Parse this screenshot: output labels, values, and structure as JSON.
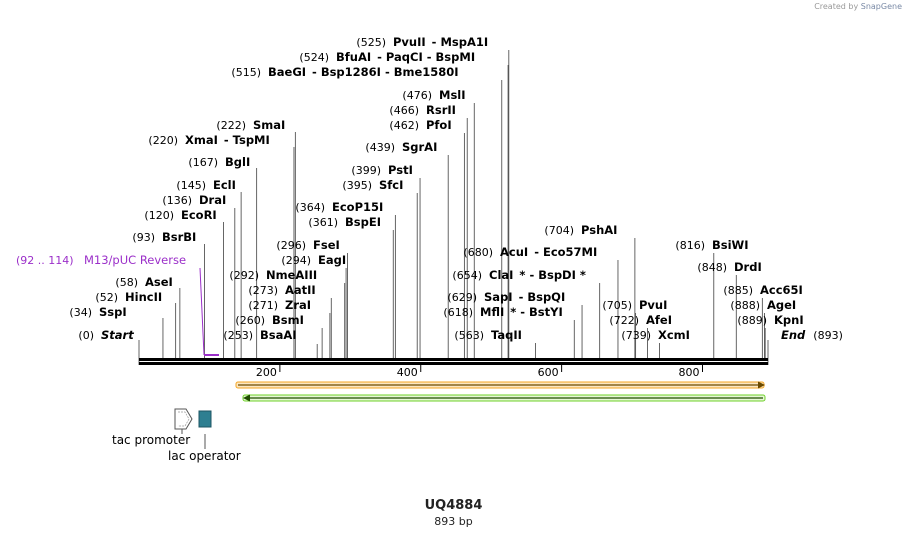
{
  "credit": {
    "prefix": "Created by",
    "brand": "SnapGene"
  },
  "sequence": {
    "name": "UQ4884",
    "length_label": "893 bp",
    "length": 893
  },
  "ruler": {
    "ticks": [
      200,
      400,
      600,
      800
    ]
  },
  "sites": [
    {
      "id": "start",
      "pos": "(0)",
      "name": "Start",
      "bp": 0,
      "italic": true
    },
    {
      "id": "sspi",
      "pos": "(34)",
      "name": "SspI",
      "bp": 34
    },
    {
      "id": "hincii",
      "pos": "(52)",
      "name": "HincII",
      "bp": 52
    },
    {
      "id": "asei",
      "pos": "(58)",
      "name": "AseI",
      "bp": 58
    },
    {
      "id": "bsrbi",
      "pos": "(93)",
      "name": "BsrBI",
      "bp": 93
    },
    {
      "id": "ecori",
      "pos": "(120)",
      "name": "EcoRI",
      "bp": 120
    },
    {
      "id": "drai",
      "pos": "(136)",
      "name": "DraI",
      "bp": 136
    },
    {
      "id": "ecli",
      "pos": "(145)",
      "name": "EclI",
      "bp": 145
    },
    {
      "id": "bgli",
      "pos": "(167)",
      "name": "BglI",
      "bp": 167
    },
    {
      "id": "xmai",
      "pos": "(220)",
      "name": "XmaI",
      "extra": "- TspMI",
      "bp": 220
    },
    {
      "id": "smai",
      "pos": "(222)",
      "name": "SmaI",
      "bp": 222
    },
    {
      "id": "bsaai",
      "pos": "(253)",
      "name": "BsaAI",
      "bp": 253
    },
    {
      "id": "bsmi",
      "pos": "(260)",
      "name": "BsmI",
      "bp": 260
    },
    {
      "id": "zrai",
      "pos": "(271)",
      "name": "ZraI",
      "bp": 271
    },
    {
      "id": "aatii",
      "pos": "(273)",
      "name": "AatII",
      "bp": 273
    },
    {
      "id": "nmeaiii",
      "pos": "(292)",
      "name": "NmeAIII",
      "bp": 292
    },
    {
      "id": "eagi",
      "pos": "(294)",
      "name": "EagI",
      "bp": 294
    },
    {
      "id": "fsei",
      "pos": "(296)",
      "name": "FseI",
      "bp": 296
    },
    {
      "id": "bspei",
      "pos": "(361)",
      "name": "BspEI",
      "bp": 361
    },
    {
      "id": "ecop15i",
      "pos": "(364)",
      "name": "EcoP15I",
      "bp": 364
    },
    {
      "id": "sfci",
      "pos": "(395)",
      "name": "SfcI",
      "bp": 395
    },
    {
      "id": "psti",
      "pos": "(399)",
      "name": "PstI",
      "bp": 399
    },
    {
      "id": "sgrai",
      "pos": "(439)",
      "name": "SgrAI",
      "bp": 439
    },
    {
      "id": "pfoi",
      "pos": "(462)",
      "name": "PfoI",
      "bp": 462
    },
    {
      "id": "rsrii",
      "pos": "(466)",
      "name": "RsrII",
      "bp": 466
    },
    {
      "id": "msli",
      "pos": "(476)",
      "name": "MslI",
      "bp": 476
    },
    {
      "id": "baegi",
      "pos": "(515)",
      "name": "BaeGI",
      "extra": "- Bsp1286I - Bme1580I",
      "bp": 515
    },
    {
      "id": "bfuai",
      "pos": "(524)",
      "name": "BfuAI",
      "extra": "- PaqCI - BspMI",
      "bp": 524
    },
    {
      "id": "pvuii",
      "pos": "(525)",
      "name": "PvuII",
      "extra": "- MspA1I",
      "bp": 525
    },
    {
      "id": "taqii",
      "pos": "(563)",
      "name": "TaqII",
      "bp": 563
    },
    {
      "id": "mfli",
      "pos": "(618)",
      "name": "MflI",
      "extra": "* - BstYI",
      "bp": 618
    },
    {
      "id": "sapi",
      "pos": "(629)",
      "name": "SapI",
      "extra": "- BspQI",
      "bp": 629
    },
    {
      "id": "clai",
      "pos": "(654)",
      "name": "ClaI",
      "extra": "* - BspDI *",
      "bp": 654
    },
    {
      "id": "acui",
      "pos": "(680)",
      "name": "AcuI",
      "extra": "- Eco57MI",
      "bp": 680
    },
    {
      "id": "pshai",
      "pos": "(704)",
      "name": "PshAI",
      "bp": 704
    },
    {
      "id": "pvui",
      "pos": "(705)",
      "name": "PvuI",
      "bp": 705
    },
    {
      "id": "afei",
      "pos": "(722)",
      "name": "AfeI",
      "bp": 722
    },
    {
      "id": "xcmi",
      "pos": "(739)",
      "name": "XcmI",
      "bp": 739
    },
    {
      "id": "bsiwi",
      "pos": "(816)",
      "name": "BsiWI",
      "bp": 816
    },
    {
      "id": "drdi",
      "pos": "(848)",
      "name": "DrdI",
      "bp": 848
    },
    {
      "id": "acc65i",
      "pos": "(885)",
      "name": "Acc65I",
      "bp": 885
    },
    {
      "id": "agei",
      "pos": "(888)",
      "name": "AgeI",
      "bp": 888
    },
    {
      "id": "kpni",
      "pos": "(889)",
      "name": "KpnI",
      "bp": 889
    },
    {
      "id": "end",
      "pos": "(893)",
      "name": "End",
      "bp": 893,
      "italic": true
    }
  ],
  "primer": {
    "label": "(92 .. 114)",
    "name": "M13/pUC Reverse",
    "color": "#9b2fc9"
  },
  "features": [
    {
      "id": "orange",
      "color": "#f5a623",
      "fill": "#fbe6c2"
    },
    {
      "id": "green",
      "color": "#6fd12a",
      "fill": "#e6f7d6"
    }
  ],
  "promoter": {
    "name": "tac promoter"
  },
  "operator": {
    "name": "lac operator",
    "color": "#2e7f91"
  }
}
